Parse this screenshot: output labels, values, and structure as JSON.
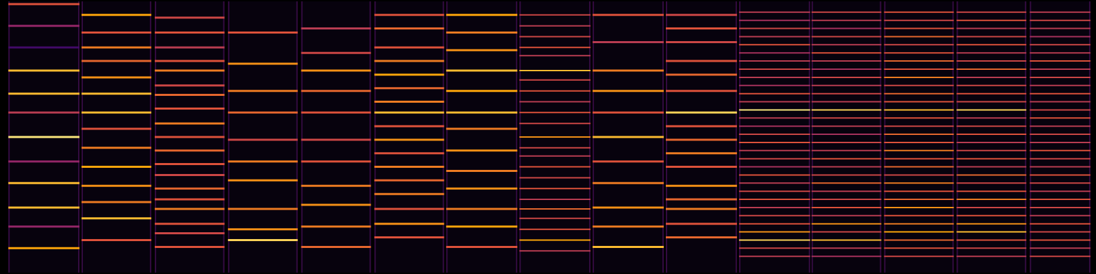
{
  "chart_data": {
    "type": "spectrogram",
    "xlim": [
      0,
      15.68
    ],
    "ylim": [
      0,
      100
    ],
    "grid": false,
    "tick_labels": false,
    "panels": [
      {
        "start": 0.1,
        "end": 1.12,
        "freqs": [
          99,
          91,
          83,
          74.5,
          66,
          59,
          50,
          41,
          33,
          24,
          17,
          9
        ],
        "intensities": [
          0.6,
          0.4,
          0.2,
          0.85,
          0.85,
          0.5,
          0.95,
          0.4,
          0.85,
          0.85,
          0.4,
          0.8
        ]
      },
      {
        "start": 1.15,
        "end": 2.15,
        "freqs": [
          95,
          88.5,
          83,
          78,
          72,
          66,
          59,
          53,
          46,
          39,
          32,
          26,
          20,
          12
        ],
        "intensities": [
          0.8,
          0.6,
          0.7,
          0.65,
          0.75,
          0.85,
          0.85,
          0.6,
          0.7,
          0.8,
          0.75,
          0.7,
          0.85,
          0.6
        ]
      },
      {
        "start": 2.2,
        "end": 3.2,
        "freqs": [
          94,
          88.5,
          83,
          78,
          74.5,
          69,
          65.5,
          60.5,
          55,
          50,
          45,
          40,
          36,
          31,
          27,
          23.5,
          18,
          14.5,
          9.5
        ],
        "intensities": [
          0.55,
          0.6,
          0.5,
          0.6,
          0.7,
          0.55,
          0.65,
          0.6,
          0.7,
          0.6,
          0.65,
          0.6,
          0.55,
          0.65,
          0.6,
          0.7,
          0.6,
          0.55,
          0.6
        ]
      },
      {
        "start": 3.25,
        "end": 4.25,
        "freqs": [
          88.5,
          77,
          67,
          59,
          49,
          41,
          34,
          23.5,
          16,
          12
        ],
        "intensities": [
          0.6,
          0.75,
          0.7,
          0.65,
          0.55,
          0.7,
          0.75,
          0.7,
          0.75,
          0.9
        ]
      },
      {
        "start": 4.3,
        "end": 5.3,
        "freqs": [
          90,
          81,
          74.5,
          67,
          59,
          49,
          41,
          32,
          25,
          17,
          9.5
        ],
        "intensities": [
          0.5,
          0.55,
          0.75,
          0.65,
          0.6,
          0.55,
          0.6,
          0.7,
          0.75,
          0.7,
          0.65
        ]
      },
      {
        "start": 5.35,
        "end": 6.35,
        "freqs": [
          95,
          90,
          83,
          78,
          73,
          68,
          63,
          59,
          54,
          49,
          44,
          39,
          34,
          29,
          23.5,
          18,
          13
        ],
        "intensities": [
          0.6,
          0.65,
          0.6,
          0.7,
          0.8,
          0.65,
          0.7,
          0.85,
          0.6,
          0.75,
          0.6,
          0.7,
          0.65,
          0.7,
          0.6,
          0.75,
          0.6
        ]
      },
      {
        "start": 6.38,
        "end": 7.4,
        "freqs": [
          95,
          88.5,
          82,
          74.5,
          67,
          59,
          53,
          45,
          37.5,
          31,
          23.5,
          17,
          9.5
        ],
        "intensities": [
          0.8,
          0.7,
          0.75,
          0.85,
          0.8,
          0.85,
          0.7,
          0.75,
          0.7,
          0.75,
          0.7,
          0.8,
          0.6
        ]
      },
      {
        "start": 7.43,
        "end": 8.45,
        "freqs": [
          95,
          91,
          87,
          83,
          80,
          74.5,
          71,
          67,
          63,
          59,
          55,
          50,
          46,
          43,
          39,
          35,
          31,
          27,
          23.5,
          20,
          16,
          12,
          8
        ],
        "intensities": [
          0.55,
          0.5,
          0.55,
          0.6,
          0.5,
          0.85,
          0.55,
          0.6,
          0.5,
          0.6,
          0.55,
          0.75,
          0.55,
          0.5,
          0.6,
          0.55,
          0.6,
          0.5,
          0.65,
          0.55,
          0.6,
          0.8,
          0.5
        ]
      },
      {
        "start": 8.48,
        "end": 9.5,
        "freqs": [
          95,
          85,
          74.5,
          67,
          59,
          50,
          41,
          33,
          24,
          17,
          9.5
        ],
        "intensities": [
          0.6,
          0.5,
          0.7,
          0.75,
          0.6,
          0.85,
          0.6,
          0.7,
          0.75,
          0.7,
          0.85
        ]
      },
      {
        "start": 9.53,
        "end": 10.55,
        "freqs": [
          95,
          90,
          85,
          78,
          73,
          67,
          59,
          54,
          49,
          44,
          39,
          32,
          27,
          23.5,
          18,
          13
        ],
        "intensities": [
          0.55,
          0.6,
          0.55,
          0.6,
          0.65,
          0.6,
          0.9,
          0.6,
          0.65,
          0.7,
          0.6,
          0.75,
          0.65,
          0.7,
          0.6,
          0.65
        ]
      },
      {
        "start": 10.58,
        "end": 11.6,
        "freqs": [
          96,
          93,
          90,
          87,
          84,
          81,
          78,
          75,
          72,
          69,
          66,
          63,
          60,
          57,
          54,
          51,
          48,
          45,
          42,
          39,
          36,
          33,
          30,
          27,
          24,
          21,
          18,
          15,
          12,
          9,
          6
        ],
        "intensities": [
          0.5,
          0.45,
          0.55,
          0.5,
          0.6,
          0.45,
          0.5,
          0.55,
          0.5,
          0.45,
          0.6,
          0.5,
          0.95,
          0.5,
          0.45,
          0.55,
          0.6,
          0.5,
          0.55,
          0.45,
          0.6,
          0.5,
          0.55,
          0.6,
          0.5,
          0.55,
          0.6,
          0.75,
          0.9,
          0.55,
          0.5
        ]
      },
      {
        "start": 11.62,
        "end": 12.62,
        "freqs": [
          96,
          93,
          90,
          87,
          84,
          81,
          78,
          75,
          72,
          69,
          66,
          63,
          60,
          57,
          54,
          51,
          48,
          45,
          42,
          39,
          36,
          33,
          30,
          27,
          24,
          21,
          18,
          15,
          12,
          9,
          6
        ],
        "intensities": [
          0.55,
          0.5,
          0.45,
          0.55,
          0.5,
          0.6,
          0.5,
          0.45,
          0.55,
          0.5,
          0.55,
          0.5,
          0.9,
          0.55,
          0.5,
          0.45,
          0.55,
          0.5,
          0.6,
          0.5,
          0.55,
          0.65,
          0.5,
          0.55,
          0.6,
          0.5,
          0.75,
          0.55,
          0.85,
          0.5,
          0.45
        ]
      },
      {
        "start": 12.66,
        "end": 13.66,
        "freqs": [
          96,
          93,
          90,
          87,
          84,
          81,
          78,
          75,
          72,
          69,
          66,
          63,
          60,
          57,
          54,
          51,
          48,
          45,
          42,
          39,
          36,
          33,
          30,
          27,
          24,
          21,
          18,
          15,
          12,
          9,
          6
        ],
        "intensities": [
          0.6,
          0.55,
          0.6,
          0.65,
          0.55,
          0.6,
          0.65,
          0.6,
          0.7,
          0.55,
          0.65,
          0.6,
          0.85,
          0.6,
          0.55,
          0.65,
          0.6,
          0.7,
          0.6,
          0.65,
          0.55,
          0.7,
          0.6,
          0.65,
          0.75,
          0.6,
          0.7,
          0.8,
          0.65,
          0.6,
          0.55
        ]
      },
      {
        "start": 13.7,
        "end": 14.7,
        "freqs": [
          96,
          93,
          90,
          87,
          84,
          81,
          78,
          75,
          72,
          69,
          66,
          63,
          60,
          57,
          54,
          51,
          48,
          45,
          42,
          39,
          36,
          33,
          30,
          27,
          24,
          21,
          18,
          15,
          12,
          9,
          6
        ],
        "intensities": [
          0.55,
          0.6,
          0.5,
          0.55,
          0.6,
          0.5,
          0.55,
          0.65,
          0.5,
          0.55,
          0.6,
          0.55,
          0.9,
          0.5,
          0.55,
          0.6,
          0.5,
          0.55,
          0.6,
          0.5,
          0.65,
          0.55,
          0.6,
          0.7,
          0.55,
          0.6,
          0.75,
          0.85,
          0.6,
          0.55,
          0.5
        ]
      },
      {
        "start": 14.75,
        "end": 15.62,
        "freqs": [
          96,
          93,
          90,
          87,
          84,
          81,
          78,
          75,
          72,
          69,
          66,
          63,
          60,
          57,
          54,
          51,
          48,
          45,
          42,
          39,
          36,
          33,
          30,
          27,
          24,
          21,
          18,
          15,
          12,
          9,
          6
        ],
        "intensities": [
          0.5,
          0.55,
          0.5,
          0.45,
          0.55,
          0.5,
          0.6,
          0.5,
          0.55,
          0.5,
          0.6,
          0.5,
          0.55,
          0.6,
          0.5,
          0.55,
          0.5,
          0.6,
          0.55,
          0.5,
          0.6,
          0.55,
          0.5,
          0.6,
          0.55,
          0.5,
          0.6,
          0.55,
          0.6,
          0.5,
          0.55
        ]
      }
    ]
  }
}
